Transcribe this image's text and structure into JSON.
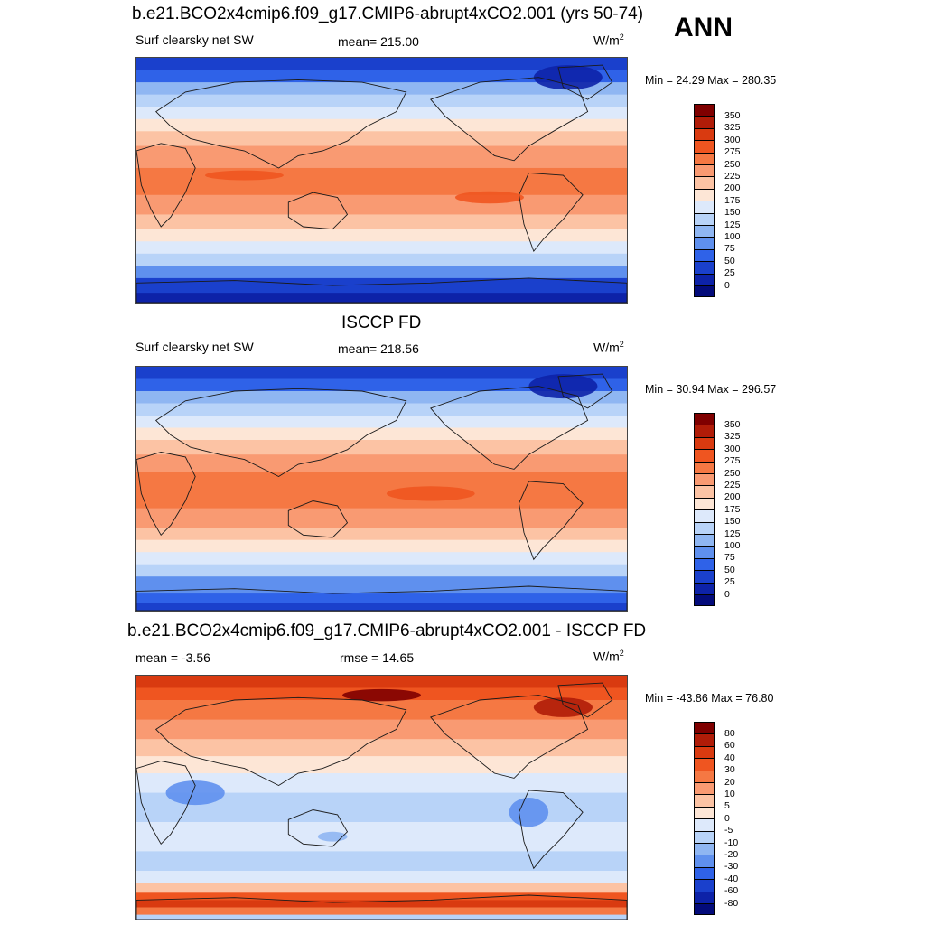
{
  "main_title": "b.e21.BCO2x4cmip6.f09_g17.CMIP6-abrupt4xCO2.001 (yrs 50-74)",
  "season": "ANN",
  "panels": [
    {
      "title": "",
      "left_label": "Surf clearsky net SW",
      "center_label": "mean= 215.00",
      "units": "W/m",
      "units_sup": "2",
      "minmax": "Min =  24.29 Max = 280.35",
      "colorbar_labels": [
        "350",
        "325",
        "300",
        "275",
        "250",
        "225",
        "200",
        "175",
        "150",
        "125",
        "100",
        "75",
        "50",
        "25",
        "0"
      ]
    },
    {
      "title": "ISCCP FD",
      "left_label": "Surf clearsky net SW",
      "center_label": "mean= 218.56",
      "units": "W/m",
      "units_sup": "2",
      "minmax": "Min =  30.94 Max = 296.57",
      "colorbar_labels": [
        "350",
        "325",
        "300",
        "275",
        "250",
        "225",
        "200",
        "175",
        "150",
        "125",
        "100",
        "75",
        "50",
        "25",
        "0"
      ]
    },
    {
      "title": "b.e21.BCO2x4cmip6.f09_g17.CMIP6-abrupt4xCO2.001 - ISCCP FD",
      "left_label": "mean =  -3.56",
      "center_label": "rmse =  14.65",
      "units": "W/m",
      "units_sup": "2",
      "minmax": "Min = -43.86 Max =  76.80",
      "colorbar_labels": [
        "80",
        "60",
        "40",
        "30",
        "20",
        "10",
        "5",
        "0",
        "-5",
        "-10",
        "-20",
        "-30",
        "-40",
        "-60",
        "-80"
      ]
    }
  ],
  "colors": {
    "palette": [
      "#7f0000",
      "#b01c08",
      "#d93a10",
      "#ef5520",
      "#f57843",
      "#f99a72",
      "#fcc3a4",
      "#fde6d6",
      "#dde9fb",
      "#b8d3f8",
      "#8fb6f2",
      "#5f90ee",
      "#2f62e8",
      "#1a40cc",
      "#0d22a8",
      "#030b7a"
    ],
    "coast": "#1a1a1a"
  }
}
